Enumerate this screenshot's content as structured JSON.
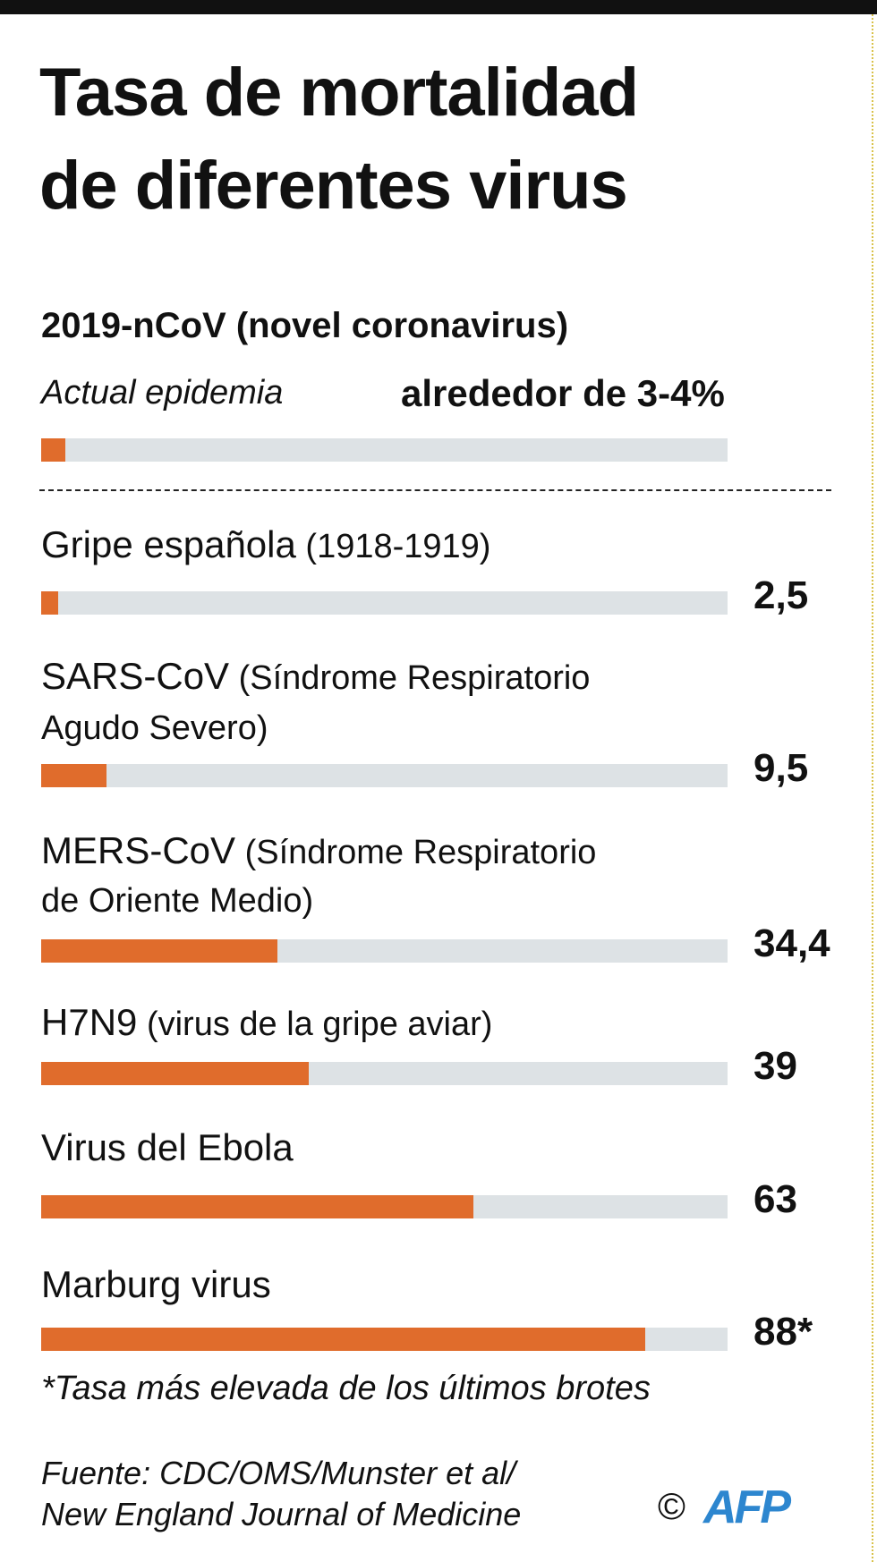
{
  "title_lines": [
    "Tasa de mortalidad",
    "de diferentes virus"
  ],
  "featured": {
    "name": "2019-nCoV (novel coronavirus)",
    "note": "Actual epidemia",
    "value_label": "alrededor de 3-4%"
  },
  "chart_data": {
    "type": "bar",
    "orientation": "horizontal",
    "title": "Tasa de mortalidad de diferentes virus",
    "unit": "%",
    "xlim": [
      0,
      100
    ],
    "categories": [
      "2019-nCoV (novel coronavirus)",
      "Gripe española (1918-1919)",
      "SARS-CoV (Síndrome Respiratorio Agudo Severo)",
      "MERS-CoV (Síndrome Respiratorio de Oriente Medio)",
      "H7N9 (virus de la gripe aviar)",
      "Virus del Ebola",
      "Marburg virus"
    ],
    "values": [
      3.5,
      2.5,
      9.5,
      34.4,
      39,
      63,
      88
    ],
    "colors": {
      "fill": "#e06c2c",
      "track": "#dde2e5"
    }
  },
  "rows": [
    {
      "lines": [
        [
          "Gripe española",
          " (1918-1919)"
        ]
      ],
      "value": 2.5,
      "value_label": "2,5"
    },
    {
      "lines": [
        [
          "SARS-CoV",
          " (Síndrome Respiratorio"
        ],
        [
          "",
          "Agudo Severo)"
        ]
      ],
      "value": 9.5,
      "value_label": "9,5"
    },
    {
      "lines": [
        [
          "MERS-CoV",
          " (Síndrome Respiratorio"
        ],
        [
          "",
          "de Oriente Medio)"
        ]
      ],
      "value": 34.4,
      "value_label": "34,4"
    },
    {
      "lines": [
        [
          "H7N9",
          " (virus de la gripe aviar)"
        ]
      ],
      "value": 39,
      "value_label": "39"
    },
    {
      "lines": [
        [
          "Virus del Ebola",
          ""
        ]
      ],
      "value": 63,
      "value_label": "63"
    },
    {
      "lines": [
        [
          "Marburg virus",
          ""
        ]
      ],
      "value": 88,
      "value_label": "88*"
    }
  ],
  "footnote": "*Tasa más elevada de los últimos brotes",
  "source_lines": [
    "Fuente:  CDC/OMS/Munster et al/",
    "New England Journal of Medicine"
  ],
  "copyright": "©",
  "logo": "AFP"
}
